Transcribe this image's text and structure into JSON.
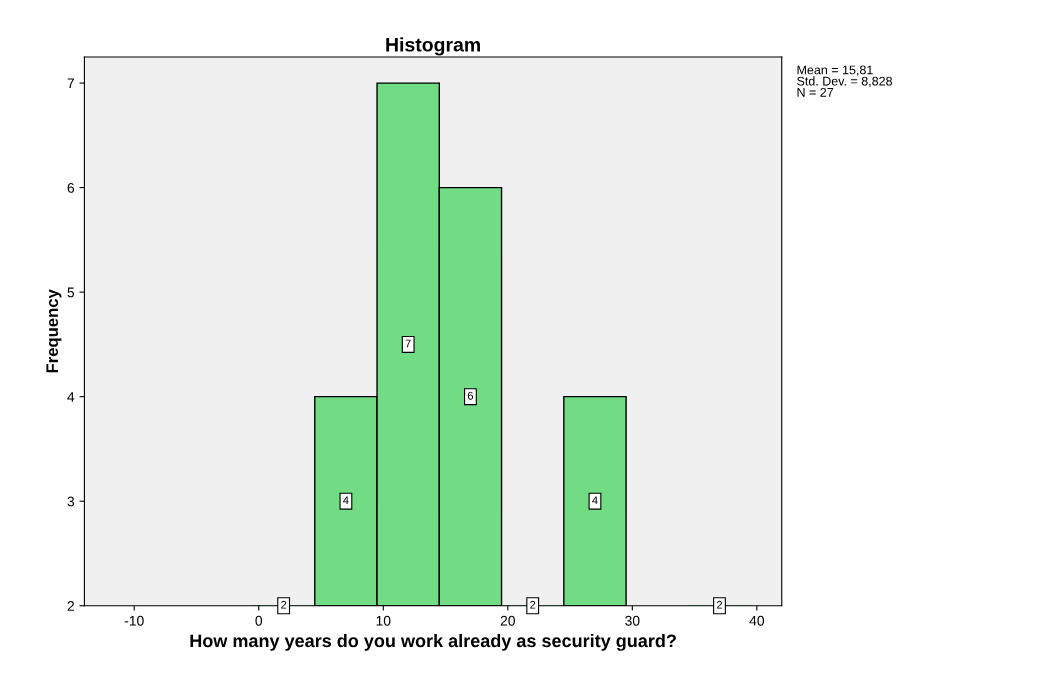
{
  "chart_data": {
    "type": "histogram",
    "title": "Histogram",
    "xlabel": "How many years do you work already as security guard?",
    "ylabel": "Frequency",
    "bins": [
      -0.5,
      4.5,
      9.5,
      14.5,
      19.5,
      24.5,
      29.5,
      34.5,
      39.5
    ],
    "values": [
      2,
      4,
      7,
      6,
      2,
      4,
      null,
      2
    ],
    "color": "#71dc84",
    "xlim": [
      -14,
      42
    ],
    "xticks": [
      -10,
      0,
      10,
      20,
      30,
      40
    ],
    "ylim": [
      2,
      7.25
    ],
    "yticks": [
      2,
      3,
      4,
      5,
      6,
      7
    ],
    "grid": false,
    "data_labels": true,
    "annotations": [
      "Mean = 15,81\nStd. Dev. = 8,828\nN = 27"
    ]
  }
}
